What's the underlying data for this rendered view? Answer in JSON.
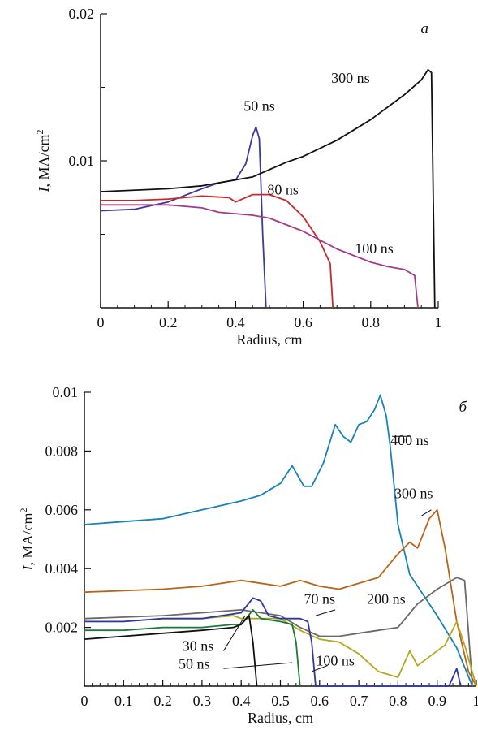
{
  "chart_data": [
    {
      "type": "line",
      "panel_label": "a",
      "xlabel": "Radius, cm",
      "ylabel_italic": "I",
      "ylabel_rest": ", MA/cm",
      "ylabel_sup": "2",
      "xlim": [
        0,
        1
      ],
      "ylim": [
        0,
        0.02
      ],
      "x_ticks": [
        0,
        0.2,
        0.4,
        0.6,
        0.8,
        1
      ],
      "x_tick_labels": [
        "0",
        "0.2",
        "0.4",
        "0.6",
        "0.8",
        "1"
      ],
      "y_ticks": [
        0.01,
        0.02
      ],
      "y_tick_labels": [
        "0.01",
        "0.02"
      ],
      "y_minor_ticks": [
        0.005,
        0.015
      ],
      "series": [
        {
          "name": "50 ns",
          "color": "#3a3a9c",
          "points": [
            [
              0,
              0.0066
            ],
            [
              0.1,
              0.0067
            ],
            [
              0.2,
              0.0072
            ],
            [
              0.3,
              0.0081
            ],
            [
              0.35,
              0.0085
            ],
            [
              0.4,
              0.0087
            ],
            [
              0.43,
              0.0098
            ],
            [
              0.45,
              0.0117
            ],
            [
              0.46,
              0.0123
            ],
            [
              0.47,
              0.0115
            ],
            [
              0.48,
              0.005
            ],
            [
              0.49,
              0.0
            ]
          ],
          "label_value": [
            0.47,
            0.0134
          ]
        },
        {
          "name": "80 ns",
          "color": "#c8282a",
          "points": [
            [
              0,
              0.0073
            ],
            [
              0.1,
              0.0073
            ],
            [
              0.2,
              0.0074
            ],
            [
              0.3,
              0.0076
            ],
            [
              0.38,
              0.0075
            ],
            [
              0.4,
              0.0072
            ],
            [
              0.45,
              0.0077
            ],
            [
              0.5,
              0.0077
            ],
            [
              0.55,
              0.0073
            ],
            [
              0.6,
              0.0062
            ],
            [
              0.65,
              0.0045
            ],
            [
              0.67,
              0.0035
            ],
            [
              0.68,
              0.003
            ],
            [
              0.688,
              0.0
            ]
          ],
          "label_value": [
            0.54,
            0.0077
          ]
        },
        {
          "name": "100 ns",
          "color": "#a23c8a",
          "points": [
            [
              0,
              0.007
            ],
            [
              0.1,
              0.007
            ],
            [
              0.2,
              0.007
            ],
            [
              0.3,
              0.0068
            ],
            [
              0.35,
              0.0065
            ],
            [
              0.45,
              0.0063
            ],
            [
              0.5,
              0.0061
            ],
            [
              0.6,
              0.0052
            ],
            [
              0.7,
              0.004
            ],
            [
              0.8,
              0.0031
            ],
            [
              0.85,
              0.0028
            ],
            [
              0.9,
              0.0026
            ],
            [
              0.93,
              0.0022
            ],
            [
              0.94,
              0.0
            ]
          ],
          "label_value": [
            0.81,
            0.0037
          ]
        },
        {
          "name": "300 ns",
          "color": "#111111",
          "points": [
            [
              0,
              0.0079
            ],
            [
              0.2,
              0.0081
            ],
            [
              0.3,
              0.0083
            ],
            [
              0.4,
              0.0087
            ],
            [
              0.45,
              0.0089
            ],
            [
              0.55,
              0.0099
            ],
            [
              0.6,
              0.0103
            ],
            [
              0.7,
              0.0114
            ],
            [
              0.8,
              0.0128
            ],
            [
              0.9,
              0.0145
            ],
            [
              0.95,
              0.0155
            ],
            [
              0.97,
              0.0162
            ],
            [
              0.98,
              0.016
            ],
            [
              0.99,
              0.0
            ]
          ],
          "label_value": [
            0.74,
            0.0153
          ]
        }
      ]
    },
    {
      "type": "line",
      "panel_label": "б",
      "xlabel": "Radius, cm",
      "ylabel_italic": "I",
      "ylabel_rest": ", MA/cm",
      "ylabel_sup": "2",
      "xlim": [
        0,
        1
      ],
      "ylim": [
        0,
        0.01
      ],
      "x_ticks": [
        0,
        0.1,
        0.2,
        0.3,
        0.4,
        0.5,
        0.6,
        0.7,
        0.8,
        0.9,
        1
      ],
      "x_tick_labels": [
        "0",
        "0.1",
        "0.2",
        "0.3",
        "0.4",
        "0.5",
        "0.6",
        "0.7",
        "0.8",
        "0.9",
        "1"
      ],
      "y_ticks": [
        0.002,
        0.004,
        0.006,
        0.008,
        0.01
      ],
      "y_tick_labels": [
        "0.002",
        "0.004",
        "0.006",
        "0.008",
        "0.01"
      ],
      "series": [
        {
          "name": "400 ns",
          "color": "#1a82b8",
          "points": [
            [
              0,
              0.0055
            ],
            [
              0.1,
              0.0056
            ],
            [
              0.2,
              0.0057
            ],
            [
              0.3,
              0.006
            ],
            [
              0.4,
              0.0063
            ],
            [
              0.45,
              0.0065
            ],
            [
              0.5,
              0.0069
            ],
            [
              0.53,
              0.0075
            ],
            [
              0.56,
              0.0068
            ],
            [
              0.58,
              0.0068
            ],
            [
              0.61,
              0.0076
            ],
            [
              0.64,
              0.0089
            ],
            [
              0.66,
              0.0085
            ],
            [
              0.68,
              0.0083
            ],
            [
              0.7,
              0.0089
            ],
            [
              0.72,
              0.009
            ],
            [
              0.74,
              0.0094
            ],
            [
              0.755,
              0.0099
            ],
            [
              0.77,
              0.0092
            ],
            [
              0.78,
              0.0082
            ],
            [
              0.8,
              0.0055
            ],
            [
              0.83,
              0.0038
            ],
            [
              0.9,
              0.0024
            ],
            [
              0.95,
              0.0013
            ],
            [
              0.99,
              0.0
            ]
          ],
          "label_value": [
            0.83,
            0.0082
          ]
        },
        {
          "name": "300 ns",
          "color": "#b8641a",
          "points": [
            [
              0,
              0.0032
            ],
            [
              0.2,
              0.0033
            ],
            [
              0.3,
              0.0034
            ],
            [
              0.4,
              0.0036
            ],
            [
              0.5,
              0.0034
            ],
            [
              0.55,
              0.0036
            ],
            [
              0.6,
              0.0034
            ],
            [
              0.65,
              0.0033
            ],
            [
              0.7,
              0.0035
            ],
            [
              0.75,
              0.0037
            ],
            [
              0.8,
              0.0045
            ],
            [
              0.83,
              0.0049
            ],
            [
              0.85,
              0.0047
            ],
            [
              0.88,
              0.0057
            ],
            [
              0.9,
              0.006
            ],
            [
              0.92,
              0.0047
            ],
            [
              0.95,
              0.0022
            ],
            [
              0.98,
              0.0005
            ],
            [
              1.0,
              0.0
            ]
          ],
          "label_value": [
            0.84,
            0.0064
          ]
        },
        {
          "name": "200 ns",
          "color": "#6a6a6a",
          "points": [
            [
              0,
              0.0023
            ],
            [
              0.2,
              0.0024
            ],
            [
              0.3,
              0.0025
            ],
            [
              0.4,
              0.0026
            ],
            [
              0.45,
              0.0025
            ],
            [
              0.5,
              0.0024
            ],
            [
              0.55,
              0.002
            ],
            [
              0.6,
              0.0017
            ],
            [
              0.65,
              0.0017
            ],
            [
              0.7,
              0.0018
            ],
            [
              0.75,
              0.0019
            ],
            [
              0.8,
              0.002
            ],
            [
              0.85,
              0.0028
            ],
            [
              0.9,
              0.0033
            ],
            [
              0.95,
              0.0037
            ],
            [
              0.97,
              0.0036
            ],
            [
              0.99,
              0.0
            ]
          ],
          "label_value": [
            0.77,
            0.0028
          ]
        },
        {
          "name": "100 ns",
          "color": "#b4a81e",
          "points": [
            [
              0,
              0.0022
            ],
            [
              0.1,
              0.0022
            ],
            [
              0.2,
              0.0023
            ],
            [
              0.3,
              0.0023
            ],
            [
              0.38,
              0.0024
            ],
            [
              0.4,
              0.0023
            ],
            [
              0.5,
              0.0023
            ],
            [
              0.55,
              0.0019
            ],
            [
              0.6,
              0.0016
            ],
            [
              0.65,
              0.0015
            ],
            [
              0.7,
              0.0011
            ],
            [
              0.75,
              0.0005
            ],
            [
              0.8,
              0.0003
            ],
            [
              0.83,
              0.0012
            ],
            [
              0.85,
              0.0007
            ],
            [
              0.88,
              0.001
            ],
            [
              0.92,
              0.0014
            ],
            [
              0.95,
              0.0022
            ],
            [
              0.97,
              0.0014
            ],
            [
              1.0,
              0.0
            ]
          ],
          "label_value": [
            0.64,
            0.0007
          ]
        },
        {
          "name": "70 ns",
          "color": "#2f37a0",
          "points": [
            [
              0,
              0.0022
            ],
            [
              0.1,
              0.0022
            ],
            [
              0.2,
              0.0023
            ],
            [
              0.3,
              0.0023
            ],
            [
              0.4,
              0.0025
            ],
            [
              0.43,
              0.003
            ],
            [
              0.45,
              0.0029
            ],
            [
              0.47,
              0.0024
            ],
            [
              0.5,
              0.0023
            ],
            [
              0.55,
              0.0023
            ],
            [
              0.57,
              0.0022
            ],
            [
              0.58,
              0.0015
            ],
            [
              0.59,
              0.0
            ],
            [
              0.93,
              0.0
            ],
            [
              0.95,
              0.0006
            ],
            [
              0.96,
              0.0
            ]
          ],
          "label_value": [
            0.6,
            0.0028
          ]
        },
        {
          "name": "50 ns",
          "color": "#1a7a3a",
          "points": [
            [
              0,
              0.0019
            ],
            [
              0.1,
              0.0019
            ],
            [
              0.2,
              0.002
            ],
            [
              0.3,
              0.002
            ],
            [
              0.38,
              0.0021
            ],
            [
              0.4,
              0.0021
            ],
            [
              0.43,
              0.0026
            ],
            [
              0.45,
              0.0023
            ],
            [
              0.5,
              0.0022
            ],
            [
              0.53,
              0.0021
            ],
            [
              0.54,
              0.0015
            ],
            [
              0.55,
              0.0
            ]
          ],
          "label_value": [
            0.28,
            0.0006
          ]
        },
        {
          "name": "30 ns",
          "color": "#111111",
          "points": [
            [
              0,
              0.0016
            ],
            [
              0.1,
              0.0017
            ],
            [
              0.2,
              0.0018
            ],
            [
              0.3,
              0.0019
            ],
            [
              0.38,
              0.002
            ],
            [
              0.4,
              0.0021
            ],
            [
              0.42,
              0.0024
            ],
            [
              0.43,
              0.0015
            ],
            [
              0.44,
              0.0
            ]
          ],
          "label_value": [
            0.29,
            0.0012
          ]
        }
      ]
    }
  ]
}
